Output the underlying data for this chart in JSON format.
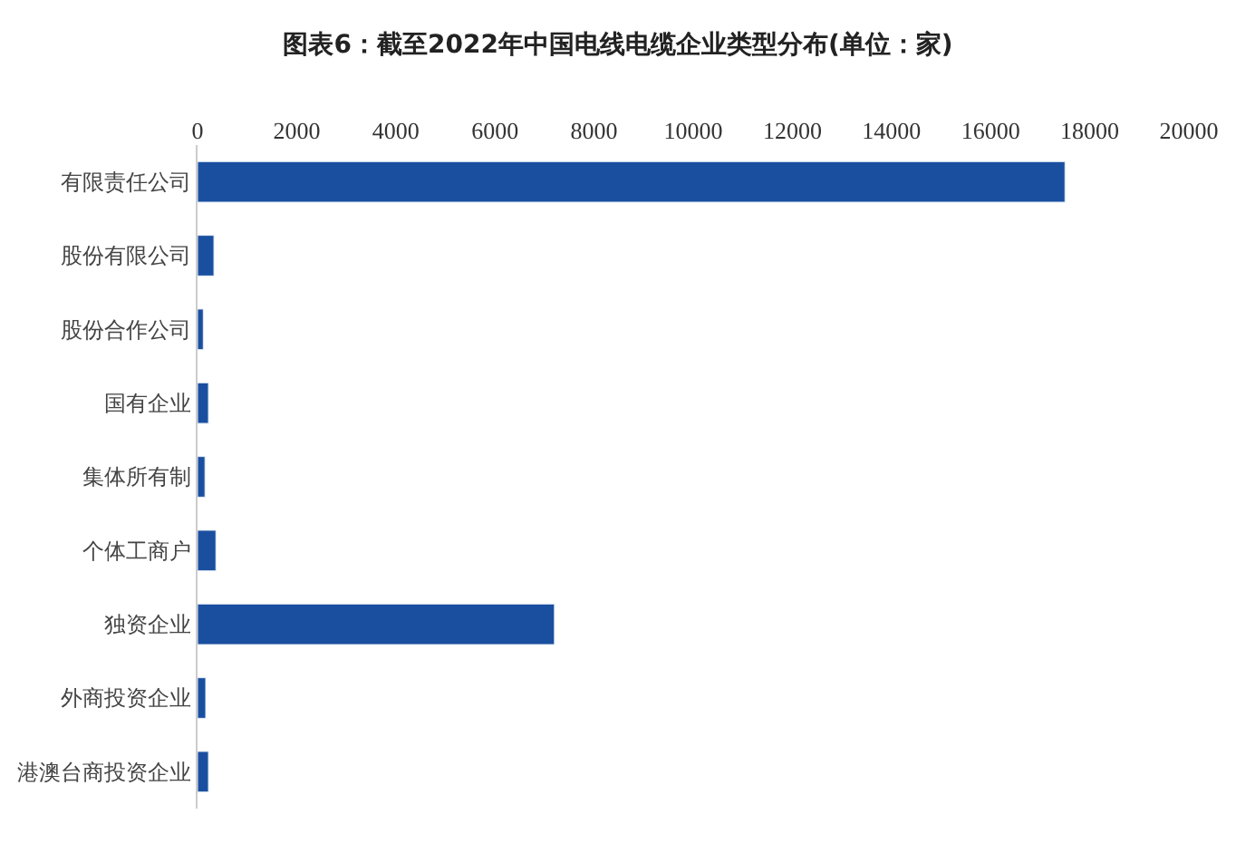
{
  "chart_data": {
    "type": "bar",
    "orientation": "horizontal",
    "title": "图表6：截至2022年中国电线电缆企业类型分布(单位：家)",
    "categories": [
      "有限责任公司",
      "股份有限公司",
      "股份合作公司",
      "国有企业",
      "集体所有制",
      "个体工商户",
      "独资企业",
      "外商投资企业",
      "港澳台商投资企业"
    ],
    "values": [
      17500,
      330,
      115,
      220,
      150,
      370,
      7200,
      165,
      220
    ],
    "color": "#1a4fa0",
    "xlim": [
      0,
      20000
    ],
    "xticks": [
      0,
      2000,
      4000,
      6000,
      8000,
      10000,
      12000,
      14000,
      16000,
      18000,
      20000
    ],
    "grid": false
  }
}
